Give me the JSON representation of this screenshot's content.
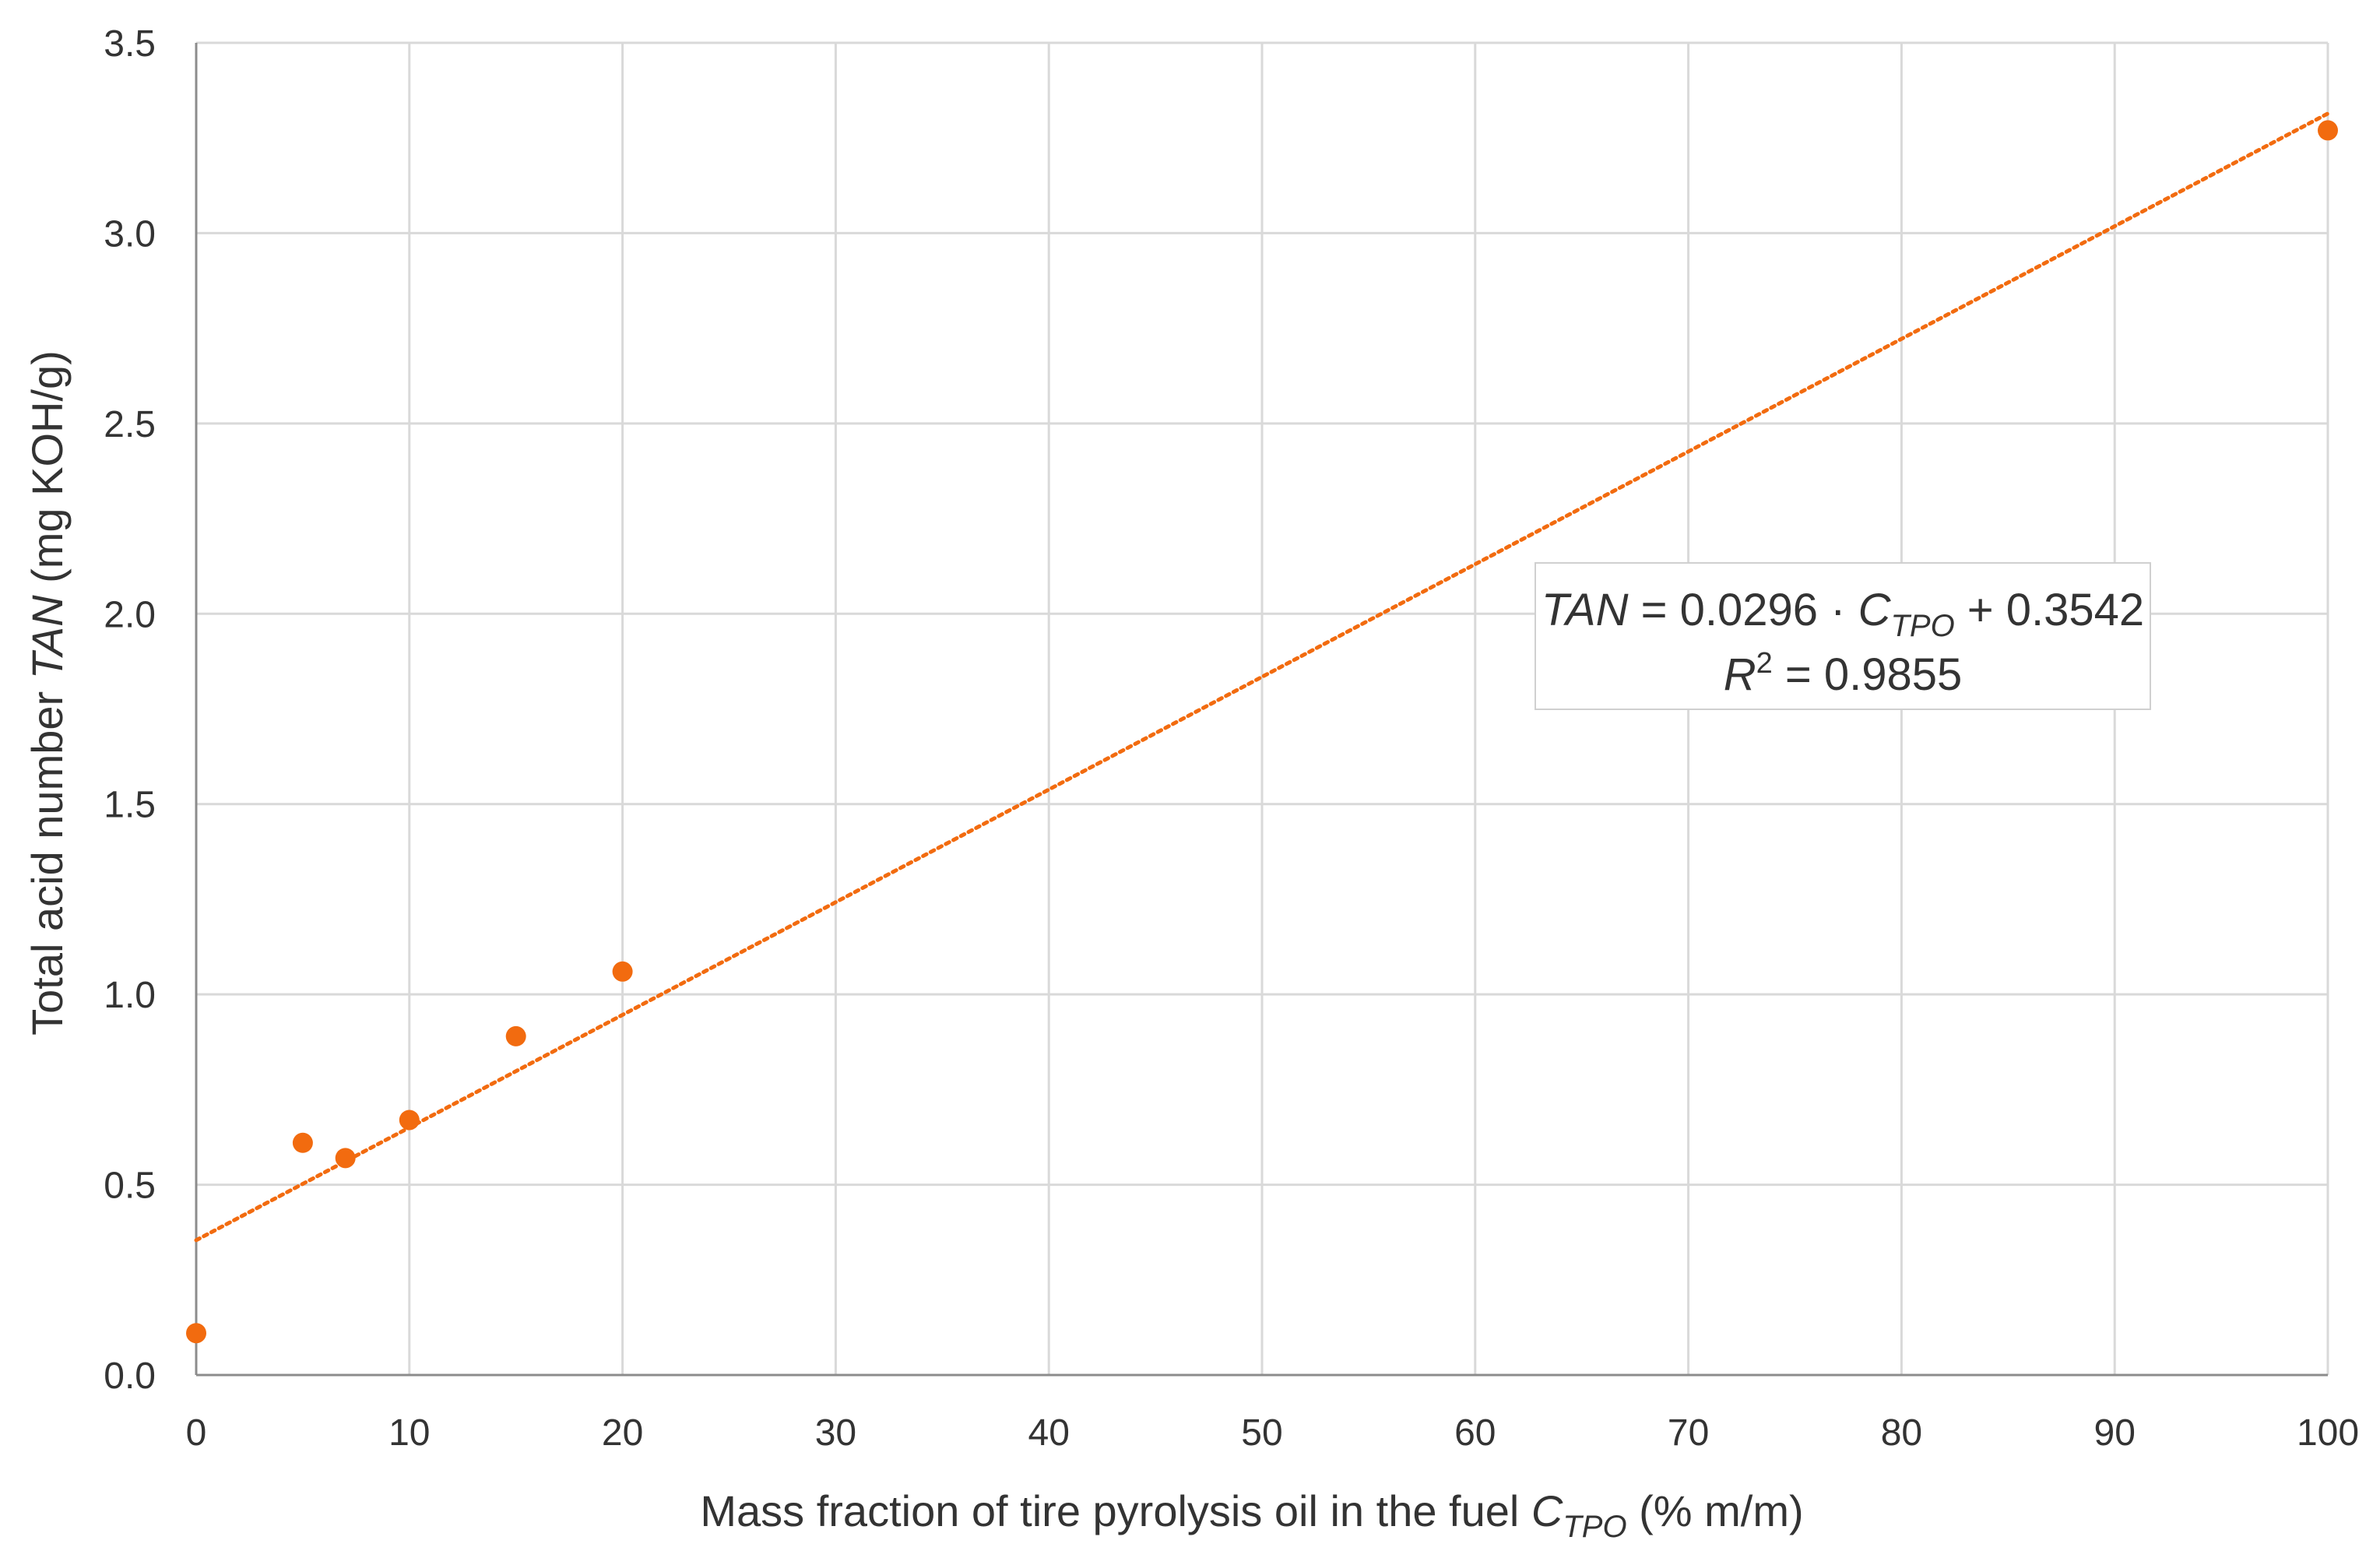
{
  "chart_data": {
    "type": "scatter",
    "title": "",
    "xlabel": {
      "prefix": "Mass fraction of tire pyrolysis oil in the fuel ",
      "var": "C",
      "var_sub": "TPO",
      "suffix": " (% m/m)"
    },
    "ylabel": {
      "prefix": "Total acid number ",
      "var": "TAN",
      "suffix": " (mg KOH/g)"
    },
    "xlim": [
      0,
      100
    ],
    "ylim": [
      0,
      3.5
    ],
    "xticks": [
      0,
      10,
      20,
      30,
      40,
      50,
      60,
      70,
      80,
      90,
      100
    ],
    "yticks": [
      0.0,
      0.5,
      1.0,
      1.5,
      2.0,
      2.5,
      3.0,
      3.5
    ],
    "xtick_labels": [
      "0",
      "10",
      "20",
      "30",
      "40",
      "50",
      "60",
      "70",
      "80",
      "90",
      "100"
    ],
    "ytick_labels": [
      "0.0",
      "0.5",
      "1.0",
      "1.5",
      "2.0",
      "2.5",
      "3.0",
      "3.5"
    ],
    "grid": true,
    "legend": false,
    "color": "#F26B0F",
    "series": [
      {
        "x": [
          0,
          5,
          7,
          10,
          15,
          20,
          100
        ],
        "y": [
          0.11,
          0.61,
          0.57,
          0.67,
          0.89,
          1.06,
          3.27
        ]
      }
    ],
    "trendline": {
      "slope": 0.0296,
      "intercept": 0.3542,
      "style": "dotted",
      "equation": {
        "lhs": "TAN",
        "eq_text": " = 0.0296 · ",
        "var": "C",
        "var_sub": "TPO",
        "tail": " + 0.3542"
      },
      "r2": {
        "var": "R",
        "sup": "2",
        "value_text": " = 0.9855"
      }
    }
  }
}
